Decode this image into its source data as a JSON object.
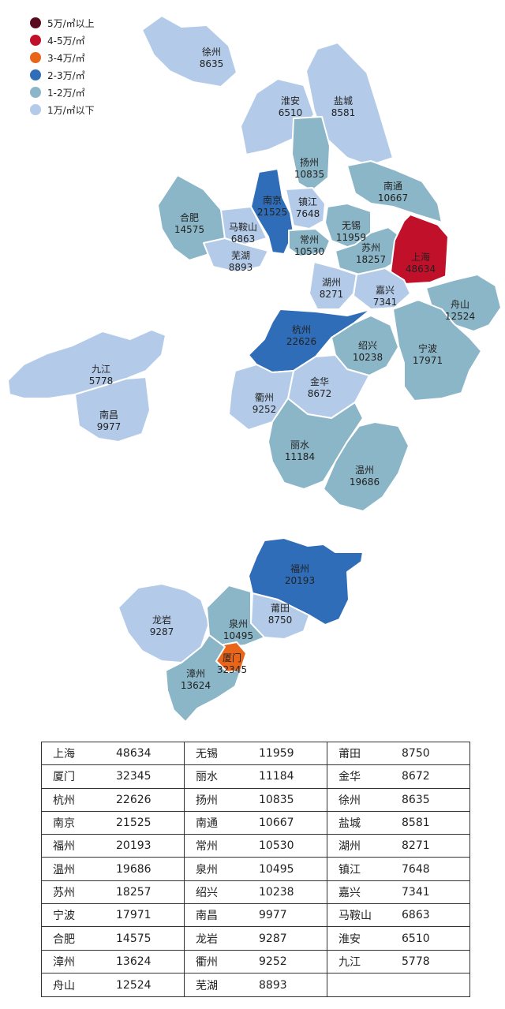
{
  "legend": [
    {
      "label": "5万/㎡以上",
      "color": "#5a0a1e"
    },
    {
      "label": "4-5万/㎡",
      "color": "#c0102a"
    },
    {
      "label": "3-4万/㎡",
      "color": "#e8651a"
    },
    {
      "label": "2-3万/㎡",
      "color": "#2f6db8"
    },
    {
      "label": "1-2万/㎡",
      "color": "#8bb6c7"
    },
    {
      "label": "1万/㎡以下",
      "color": "#b3cbe8"
    }
  ],
  "cities": [
    {
      "name": "徐州",
      "value": "8635",
      "tier": 5
    },
    {
      "name": "淮安",
      "value": "6510",
      "tier": 5
    },
    {
      "name": "盐城",
      "value": "8581",
      "tier": 5
    },
    {
      "name": "扬州",
      "value": "10835",
      "tier": 4
    },
    {
      "name": "南通",
      "value": "10667",
      "tier": 4
    },
    {
      "name": "南京",
      "value": "21525",
      "tier": 3
    },
    {
      "name": "镇江",
      "value": "7648",
      "tier": 5
    },
    {
      "name": "合肥",
      "value": "14575",
      "tier": 4
    },
    {
      "name": "马鞍山",
      "value": "6863",
      "tier": 5
    },
    {
      "name": "常州",
      "value": "10530",
      "tier": 4
    },
    {
      "name": "无锡",
      "value": "11959",
      "tier": 4
    },
    {
      "name": "苏州",
      "value": "18257",
      "tier": 4
    },
    {
      "name": "上海",
      "value": "48634",
      "tier": 1
    },
    {
      "name": "芜湖",
      "value": "8893",
      "tier": 5
    },
    {
      "name": "湖州",
      "value": "8271",
      "tier": 5
    },
    {
      "name": "嘉兴",
      "value": "7341",
      "tier": 5
    },
    {
      "name": "舟山",
      "value": "12524",
      "tier": 4
    },
    {
      "name": "杭州",
      "value": "22626",
      "tier": 3
    },
    {
      "name": "绍兴",
      "value": "10238",
      "tier": 4
    },
    {
      "name": "宁波",
      "value": "17971",
      "tier": 4
    },
    {
      "name": "九江",
      "value": "5778",
      "tier": 5
    },
    {
      "name": "南昌",
      "value": "9977",
      "tier": 5
    },
    {
      "name": "金华",
      "value": "8672",
      "tier": 5
    },
    {
      "name": "衢州",
      "value": "9252",
      "tier": 5
    },
    {
      "name": "丽水",
      "value": "11184",
      "tier": 4
    },
    {
      "name": "温州",
      "value": "19686",
      "tier": 4
    },
    {
      "name": "福州",
      "value": "20193",
      "tier": 3
    },
    {
      "name": "龙岩",
      "value": "9287",
      "tier": 5
    },
    {
      "name": "莆田",
      "value": "8750",
      "tier": 5
    },
    {
      "name": "泉州",
      "value": "10495",
      "tier": 4
    },
    {
      "name": "厦门",
      "value": "32345",
      "tier": 2
    },
    {
      "name": "漳州",
      "value": "13624",
      "tier": 4
    }
  ],
  "table": [
    [
      {
        "city": "上海",
        "value": "48634"
      },
      {
        "city": "厦门",
        "value": "32345"
      },
      {
        "city": "杭州",
        "value": "22626"
      },
      {
        "city": "南京",
        "value": "21525"
      },
      {
        "city": "福州",
        "value": "20193"
      },
      {
        "city": "温州",
        "value": "19686"
      },
      {
        "city": "苏州",
        "value": "18257"
      },
      {
        "city": "宁波",
        "value": "17971"
      },
      {
        "city": "合肥",
        "value": "14575"
      },
      {
        "city": "漳州",
        "value": "13624"
      },
      {
        "city": "舟山",
        "value": "12524"
      }
    ],
    [
      {
        "city": "无锡",
        "value": "11959"
      },
      {
        "city": "丽水",
        "value": "11184"
      },
      {
        "city": "扬州",
        "value": "10835"
      },
      {
        "city": "南通",
        "value": "10667"
      },
      {
        "city": "常州",
        "value": "10530"
      },
      {
        "city": "泉州",
        "value": "10495"
      },
      {
        "city": "绍兴",
        "value": "10238"
      },
      {
        "city": "南昌",
        "value": "9977"
      },
      {
        "city": "龙岩",
        "value": "9287"
      },
      {
        "city": "衢州",
        "value": "9252"
      },
      {
        "city": "芜湖",
        "value": "8893"
      }
    ],
    [
      {
        "city": "莆田",
        "value": "8750"
      },
      {
        "city": "金华",
        "value": "8672"
      },
      {
        "city": "徐州",
        "value": "8635"
      },
      {
        "city": "盐城",
        "value": "8581"
      },
      {
        "city": "湖州",
        "value": "8271"
      },
      {
        "city": "镇江",
        "value": "7648"
      },
      {
        "city": "嘉兴",
        "value": "7341"
      },
      {
        "city": "马鞍山",
        "value": "6863"
      },
      {
        "city": "淮安",
        "value": "6510"
      },
      {
        "city": "九江",
        "value": "5778"
      },
      {
        "city": "",
        "value": ""
      }
    ]
  ]
}
